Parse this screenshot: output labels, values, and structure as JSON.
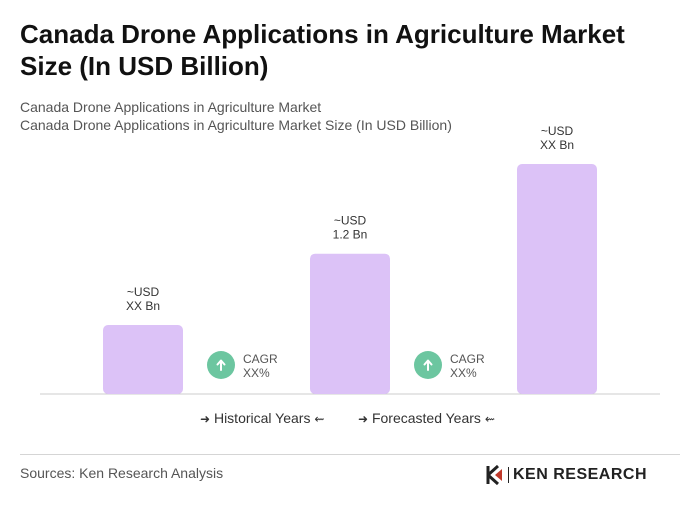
{
  "title": "Canada Drone Applications in Agriculture Market Size (In USD Billion)",
  "subtitle_1": "Canada Drone Applications in Agriculture Market",
  "subtitle_2": "Canada Drone Applications in Agriculture Market Size (In USD Billion)",
  "chart_data": {
    "type": "bar",
    "bars": [
      {
        "label_line1": "~USD",
        "label_line2": "XX Bn",
        "relative_value": 0.3
      },
      {
        "label_line1": "~USD",
        "label_line2": "1.2 Bn",
        "relative_value": 0.61
      },
      {
        "label_line1": "~USD",
        "label_line2": "XX Bn",
        "relative_value": 1.0
      }
    ],
    "cagr_markers": [
      {
        "label_line1": "CAGR",
        "label_line2": "XX%"
      },
      {
        "label_line1": "CAGR",
        "label_line2": "XX%"
      }
    ],
    "bar_color": "#dcc2f7",
    "cagr_color": "#6cc6a0",
    "legend": [
      "Historical Years",
      "Forecasted Years"
    ]
  },
  "legend": {
    "historical": "Historical Years",
    "forecasted": "Forecasted Years"
  },
  "footer": {
    "sources": "Sources: Ken Research Analysis",
    "logo_text": "KEN RESEARCH"
  }
}
